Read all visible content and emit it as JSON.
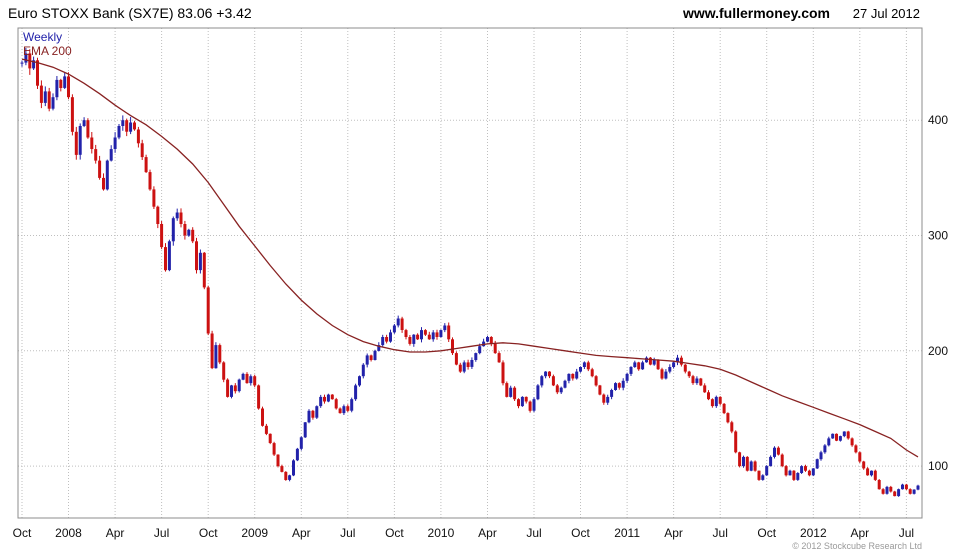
{
  "header": {
    "title": "Euro STOXX Bank (SX7E) 83.06 +3.42",
    "website": "www.fullermoney.com",
    "date": "27 Jul 2012"
  },
  "legend": {
    "series1": "Weekly",
    "series2": "EMA 200"
  },
  "footer": {
    "copyright": "© 2012 Stockcube Research Ltd"
  },
  "chart_data": {
    "type": "candlestick",
    "title": "Euro STOXX Bank (SX7E)",
    "last_price": 83.06,
    "change": 3.42,
    "interval": "Weekly",
    "overlay": "EMA 200",
    "grid": true,
    "legend_position": "top-left",
    "ylim": [
      55,
      480
    ],
    "yticks": [
      100,
      200,
      300,
      400
    ],
    "x_axis_labels": [
      [
        "Oct",
        0
      ],
      [
        "2008",
        12
      ],
      [
        "Apr",
        24
      ],
      [
        "Jul",
        36
      ],
      [
        "Oct",
        48
      ],
      [
        "2009",
        60
      ],
      [
        "Apr",
        72
      ],
      [
        "Jul",
        84
      ],
      [
        "Oct",
        96
      ],
      [
        "2010",
        108
      ],
      [
        "Apr",
        120
      ],
      [
        "Jul",
        132
      ],
      [
        "Oct",
        144
      ],
      [
        "2011",
        156
      ],
      [
        "Apr",
        168
      ],
      [
        "Jul",
        180
      ],
      [
        "Oct",
        192
      ],
      [
        "2012",
        204
      ],
      [
        "Apr",
        216
      ],
      [
        "Jul",
        228
      ]
    ],
    "weekly_closes": [
      450,
      458,
      445,
      452,
      430,
      415,
      425,
      410,
      420,
      435,
      428,
      438,
      420,
      390,
      370,
      395,
      400,
      385,
      375,
      365,
      350,
      340,
      365,
      375,
      385,
      395,
      400,
      390,
      398,
      392,
      380,
      368,
      355,
      340,
      325,
      310,
      290,
      270,
      295,
      315,
      320,
      310,
      300,
      305,
      295,
      270,
      285,
      255,
      215,
      185,
      205,
      190,
      175,
      160,
      170,
      165,
      175,
      180,
      172,
      178,
      170,
      150,
      135,
      128,
      120,
      110,
      100,
      95,
      88,
      92,
      105,
      115,
      125,
      138,
      148,
      142,
      152,
      160,
      156,
      162,
      158,
      150,
      146,
      152,
      148,
      158,
      170,
      178,
      188,
      196,
      192,
      200,
      205,
      212,
      208,
      216,
      222,
      228,
      218,
      212,
      206,
      214,
      210,
      218,
      214,
      210,
      216,
      212,
      218,
      222,
      210,
      198,
      188,
      182,
      190,
      186,
      192,
      198,
      204,
      208,
      212,
      206,
      198,
      190,
      172,
      160,
      168,
      158,
      152,
      160,
      156,
      148,
      158,
      170,
      178,
      182,
      178,
      170,
      164,
      168,
      174,
      180,
      176,
      182,
      186,
      190,
      184,
      178,
      170,
      162,
      155,
      160,
      166,
      172,
      168,
      174,
      180,
      186,
      190,
      184,
      190,
      194,
      188,
      192,
      184,
      176,
      182,
      186,
      190,
      194,
      188,
      182,
      178,
      172,
      176,
      170,
      164,
      158,
      152,
      160,
      154,
      146,
      138,
      130,
      112,
      100,
      108,
      96,
      104,
      96,
      88,
      92,
      100,
      108,
      116,
      110,
      100,
      92,
      96,
      88,
      94,
      100,
      96,
      92,
      98,
      106,
      112,
      118,
      124,
      128,
      122,
      126,
      130,
      124,
      118,
      112,
      104,
      98,
      92,
      96,
      88,
      80,
      76,
      82,
      78,
      74,
      80,
      84,
      80,
      76,
      79.6,
      83.06
    ],
    "ema_anchors": [
      [
        0,
        453
      ],
      [
        4,
        450
      ],
      [
        8,
        446
      ],
      [
        12,
        440
      ],
      [
        16,
        432
      ],
      [
        20,
        423
      ],
      [
        24,
        413
      ],
      [
        28,
        404
      ],
      [
        32,
        396
      ],
      [
        36,
        386
      ],
      [
        40,
        375
      ],
      [
        44,
        362
      ],
      [
        48,
        346
      ],
      [
        52,
        327
      ],
      [
        56,
        308
      ],
      [
        60,
        291
      ],
      [
        64,
        274
      ],
      [
        68,
        258
      ],
      [
        72,
        244
      ],
      [
        76,
        232
      ],
      [
        80,
        222
      ],
      [
        84,
        214
      ],
      [
        88,
        208
      ],
      [
        92,
        204
      ],
      [
        96,
        201
      ],
      [
        100,
        199
      ],
      [
        104,
        199
      ],
      [
        108,
        200
      ],
      [
        112,
        202
      ],
      [
        116,
        204
      ],
      [
        120,
        206
      ],
      [
        124,
        207
      ],
      [
        128,
        206
      ],
      [
        132,
        204
      ],
      [
        136,
        202
      ],
      [
        140,
        200
      ],
      [
        144,
        198
      ],
      [
        148,
        196
      ],
      [
        152,
        195
      ],
      [
        156,
        194
      ],
      [
        160,
        193
      ],
      [
        164,
        192
      ],
      [
        168,
        191
      ],
      [
        172,
        189
      ],
      [
        176,
        187
      ],
      [
        180,
        184
      ],
      [
        184,
        179
      ],
      [
        188,
        173
      ],
      [
        192,
        167
      ],
      [
        196,
        161
      ],
      [
        200,
        156
      ],
      [
        204,
        151
      ],
      [
        208,
        146
      ],
      [
        212,
        141
      ],
      [
        216,
        136
      ],
      [
        220,
        130
      ],
      [
        224,
        124
      ],
      [
        228,
        114
      ],
      [
        231,
        108
      ]
    ],
    "colors": {
      "up": "#2222aa",
      "down": "#cc1111",
      "ema": "#882222",
      "grid": "#bfbfbf",
      "axis_text": "#111111",
      "border": "#8c8c8c"
    }
  }
}
